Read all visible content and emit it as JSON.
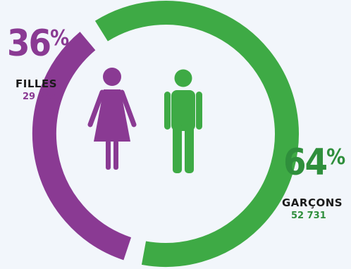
{
  "chart_data": {
    "type": "pie",
    "categories": [
      "FILLES",
      "GARÇONS"
    ],
    "values": [
      36,
      64
    ],
    "counts": [
      "29 784",
      "52 731"
    ]
  },
  "girls": {
    "number": "36",
    "symbol": "%",
    "label": "FILLES",
    "count": "29 784"
  },
  "boys": {
    "number": "64",
    "symbol": "%",
    "label": "GARÇONS",
    "count": "52 731"
  },
  "colors": {
    "girls": "#8a3a93",
    "boys": "#3eaa45",
    "background": "#f2f6fb"
  },
  "icons": {
    "girls": "female-figure-icon",
    "boys": "male-figure-icon"
  }
}
